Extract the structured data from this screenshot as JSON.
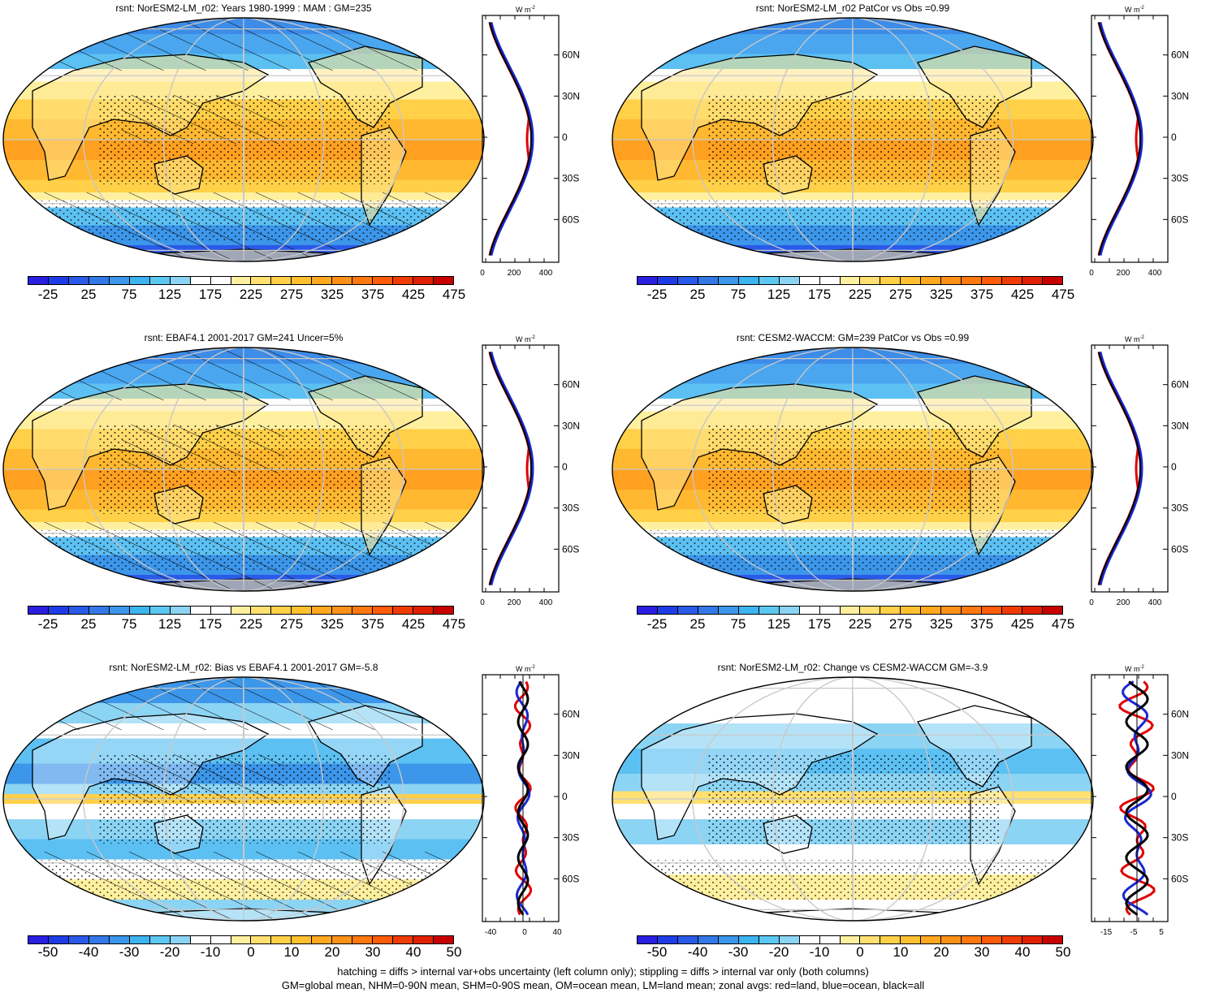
{
  "panels": [
    {
      "title": "rsnt: NorESM2-LM_r02: Years 1980-1999 : MAM : GM=235",
      "kind": "abs",
      "hatch": true
    },
    {
      "title": "rsnt: NorESM2-LM_r02 PatCor vs Obs =0.99",
      "kind": "abs",
      "hatch": false
    },
    {
      "title": "rsnt: EBAF4.1 2001-2017 GM=241 Uncer=5%",
      "kind": "abs",
      "hatch": true
    },
    {
      "title": "rsnt: CESM2-WACCM: GM=239 PatCor vs Obs =0.99",
      "kind": "abs",
      "hatch": false
    },
    {
      "title": "rsnt: NorESM2-LM_r02: Bias vs EBAF4.1 2001-2017 GM=-5.8",
      "kind": "diff",
      "hatch": true
    },
    {
      "title": "rsnt: NorESM2-LM_r02: Change vs CESM2-WACCM GM=-3.9",
      "kind": "diff",
      "hatch": false
    }
  ],
  "colorbar_abs": {
    "labels": [
      "-25",
      "25",
      "75",
      "125",
      "175",
      "225",
      "275",
      "325",
      "375",
      "425",
      "475"
    ],
    "colors": [
      "#2a1ee0",
      "#1e3ce6",
      "#2a5ae8",
      "#3478e8",
      "#3c96ea",
      "#3cb4f0",
      "#5cc8f2",
      "#8cd4f4",
      "#ffffff",
      "#ffffff",
      "#fff0a0",
      "#ffe070",
      "#ffd048",
      "#ffc030",
      "#ffa820",
      "#ff9018",
      "#ff7810",
      "#ff5c08",
      "#f03c04",
      "#e02000",
      "#c80000"
    ]
  },
  "colorbar_diff": {
    "labels": [
      "-50",
      "-40",
      "-30",
      "-20",
      "-10",
      "0",
      "10",
      "20",
      "30",
      "40",
      "50"
    ],
    "colors": [
      "#2a1ee0",
      "#1e3ce6",
      "#2a5ae8",
      "#3478e8",
      "#3c96ea",
      "#3cb4f0",
      "#5cc8f2",
      "#8cd4f4",
      "#ffffff",
      "#ffffff",
      "#fff0a0",
      "#ffe070",
      "#ffd048",
      "#ffc030",
      "#ffa820",
      "#ff9018",
      "#ff7810",
      "#ff5c08",
      "#f03c04",
      "#e02000",
      "#c80000"
    ]
  },
  "profile": {
    "units": "W m",
    "units_sup": "-2",
    "lat_ticks": [
      "60N",
      "30N",
      "0",
      "30S",
      "60S"
    ],
    "x_ticks_abs": [
      "0",
      "200",
      "400"
    ],
    "x_ticks_diff_left": [
      "-40",
      "0",
      "40"
    ],
    "x_ticks_diff_right": [
      "-15",
      "-5",
      "5"
    ]
  },
  "footer": {
    "line1": "hatching = diffs > internal var+obs uncertainty (left column only); stippling = diffs > internal var only (both columns)",
    "line2": "GM=global mean, NHM=0-90N mean, SHM=0-90S mean, OM=ocean mean, LM=land mean; zonal avgs: red=land, blue=ocean, black=all"
  }
}
